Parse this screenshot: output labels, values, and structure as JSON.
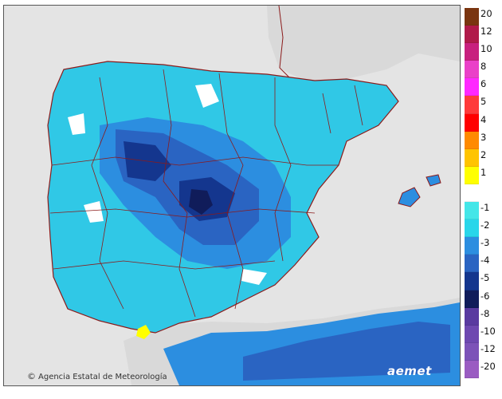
{
  "credit": {
    "symbol": "©",
    "text": "Agencia Estatal de Meteorología"
  },
  "logo": {
    "text": "aemet"
  },
  "legend": {
    "labels": [
      "20",
      "12",
      "10",
      "8",
      "6",
      "5",
      "4",
      "3",
      "2",
      "1",
      "",
      "-1",
      "-2",
      "-3",
      "-4",
      "-5",
      "-6",
      "-8",
      "-10",
      "-12",
      "-20"
    ],
    "colors": [
      "#7a3510",
      "#b01a4a",
      "#c8207e",
      "#ea40c8",
      "#ff28ff",
      "#ff3a3a",
      "#ff0000",
      "#ff8a00",
      "#ffc400",
      "#ffff00",
      "#ffffff",
      "#44e6e8",
      "#28d6ea",
      "#2c8ee0",
      "#2a64c2",
      "#14368e",
      "#101c5a",
      "#5a3aa0",
      "#6e48b0",
      "#7c52b8",
      "#9a5cc2"
    ]
  }
}
